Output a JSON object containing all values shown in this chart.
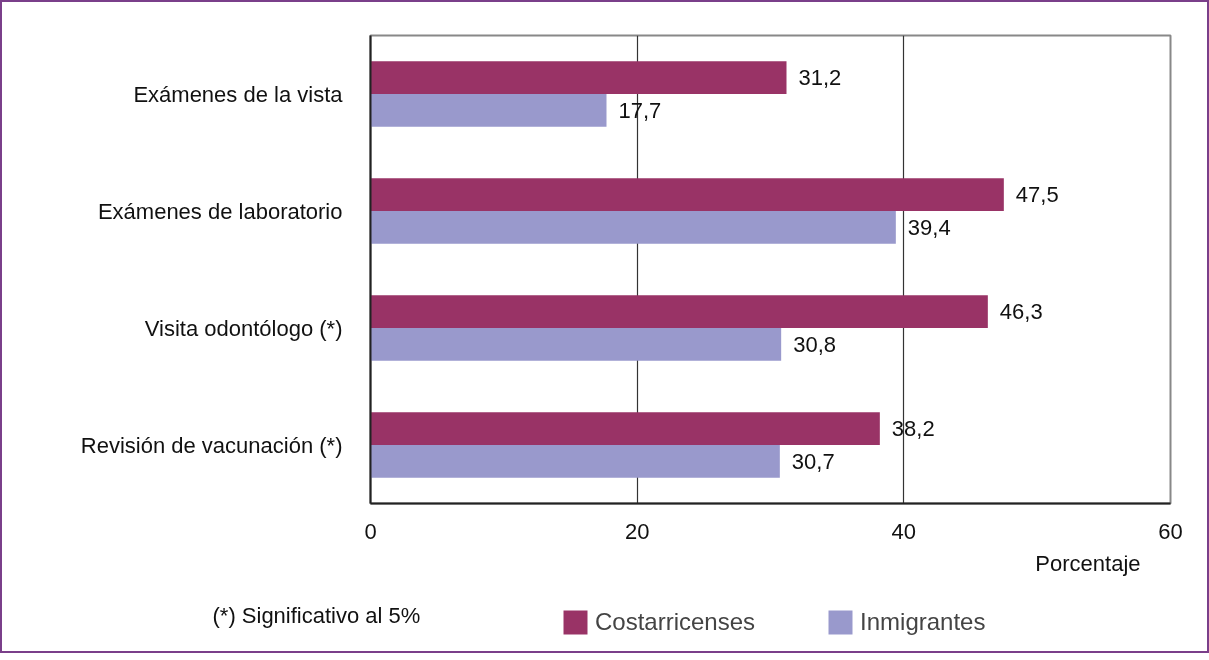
{
  "chart_data": {
    "type": "bar",
    "orientation": "horizontal",
    "categories": [
      "Exámenes de la vista",
      "Exámenes de laboratorio",
      "Visita odontólogo (*)",
      "Revisión de vacunación (*)"
    ],
    "series": [
      {
        "name": "Costarricenses",
        "color": "#993366",
        "values": [
          31.2,
          47.5,
          46.3,
          38.2
        ],
        "value_labels": [
          "31,2",
          "47,5",
          "46,3",
          "38,2"
        ]
      },
      {
        "name": "Inmigrantes",
        "color": "#9999cc",
        "values": [
          17.7,
          39.4,
          30.8,
          30.7
        ],
        "value_labels": [
          "17,7",
          "39,4",
          "30,8",
          "30,7"
        ]
      }
    ],
    "xlim": [
      0,
      60
    ],
    "xticks": [
      0,
      20,
      40,
      60
    ],
    "xlabel": "Porcentaje",
    "grid": "x",
    "legend": "bottom",
    "annotations": [
      "(*) Significativo al  5%"
    ]
  }
}
